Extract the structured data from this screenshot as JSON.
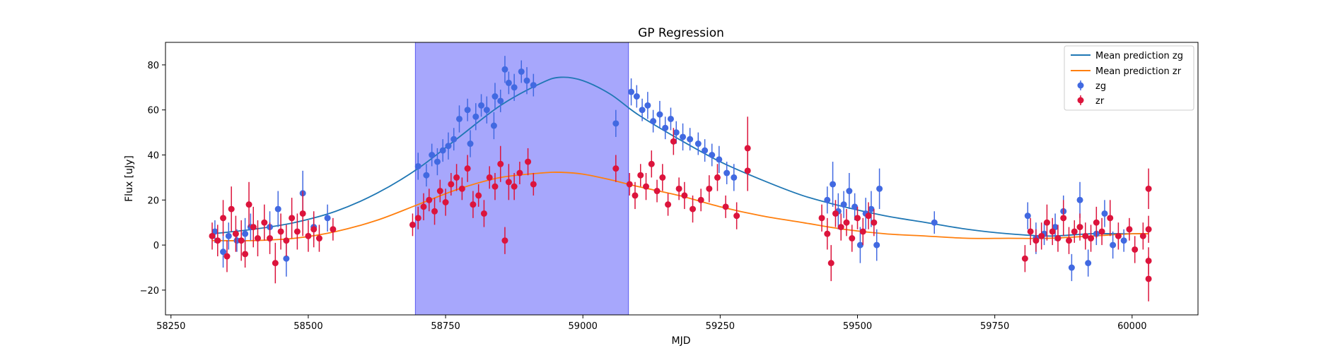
{
  "chart_data": {
    "type": "scatter",
    "title": "GP Regression",
    "xlabel": "MJD",
    "ylabel": "Flux [uJy]",
    "xlim": [
      58240,
      60120
    ],
    "ylim": [
      -31,
      90
    ],
    "xticks": [
      58250,
      58500,
      58750,
      59000,
      59250,
      59500,
      59750,
      60000
    ],
    "yticks": [
      -20,
      0,
      20,
      40,
      60,
      80
    ],
    "grid": false,
    "legend_position": "top-right",
    "legend": [
      "Mean prediction zg",
      "Mean prediction zr",
      "zg",
      "zr"
    ],
    "colors": {
      "zg_line": "#1f77b4",
      "zr_line": "#ff7f0e",
      "zg_points": "#4169e1",
      "zr_points": "#dc143c",
      "span": "#7d7dfa"
    },
    "highlight_span": {
      "x0": 58695,
      "x1": 59083
    },
    "series": [
      {
        "name": "Mean prediction zg",
        "kind": "line",
        "x": [
          58325,
          58400,
          58475,
          58550,
          58625,
          58700,
          58775,
          58850,
          58925,
          58960,
          59000,
          59050,
          59100,
          59175,
          59250,
          59325,
          59400,
          59475,
          59550,
          59625,
          59700,
          59775,
          59850,
          59925,
          60000,
          60030
        ],
        "y": [
          5,
          7,
          10,
          15,
          23,
          34,
          48,
          62,
          72,
          74.5,
          73,
          67,
          58,
          47,
          37,
          29,
          22,
          17,
          13,
          10,
          7,
          5,
          4,
          5,
          5,
          5
        ]
      },
      {
        "name": "Mean prediction zr",
        "kind": "line",
        "x": [
          58325,
          58400,
          58475,
          58550,
          58625,
          58700,
          58775,
          58850,
          58925,
          58960,
          59000,
          59050,
          59100,
          59175,
          59250,
          59325,
          59400,
          59475,
          59550,
          59625,
          59700,
          59775,
          59850,
          59925,
          60000,
          60030
        ],
        "y": [
          2,
          2,
          3,
          6,
          11,
          18,
          25,
          30,
          32,
          32.3,
          31.5,
          29,
          26,
          22,
          17,
          13,
          10,
          7,
          5,
          4,
          3,
          3,
          3,
          4,
          5,
          5
        ]
      },
      {
        "name": "zg",
        "kind": "errorbar",
        "points": [
          [
            58330,
            6,
            5
          ],
          [
            58345,
            -3,
            7
          ],
          [
            58355,
            4,
            6
          ],
          [
            58370,
            2,
            5
          ],
          [
            58385,
            5,
            7
          ],
          [
            58395,
            8,
            6
          ],
          [
            58430,
            8,
            7
          ],
          [
            58445,
            16,
            8
          ],
          [
            58460,
            -6,
            8
          ],
          [
            58490,
            23,
            10
          ],
          [
            58510,
            8,
            6
          ],
          [
            58535,
            12,
            6
          ],
          [
            58700,
            35,
            6
          ],
          [
            58715,
            31,
            5
          ],
          [
            58725,
            40,
            5
          ],
          [
            58735,
            37,
            6
          ],
          [
            58745,
            42,
            5
          ],
          [
            58755,
            44,
            6
          ],
          [
            58765,
            47,
            5
          ],
          [
            58775,
            56,
            6
          ],
          [
            58790,
            60,
            5
          ],
          [
            58805,
            57,
            6
          ],
          [
            58815,
            62,
            5
          ],
          [
            58825,
            60,
            6
          ],
          [
            58840,
            66,
            6
          ],
          [
            58850,
            64,
            5
          ],
          [
            58858,
            78,
            6
          ],
          [
            58865,
            72,
            5
          ],
          [
            58875,
            70,
            6
          ],
          [
            58888,
            77,
            5
          ],
          [
            58898,
            73,
            6
          ],
          [
            58910,
            71,
            5
          ],
          [
            58838,
            53,
            6
          ],
          [
            58795,
            45,
            6
          ],
          [
            59060,
            54,
            6
          ],
          [
            59088,
            68,
            6
          ],
          [
            59098,
            66,
            5
          ],
          [
            59108,
            60,
            5
          ],
          [
            59118,
            62,
            6
          ],
          [
            59128,
            55,
            5
          ],
          [
            59140,
            58,
            6
          ],
          [
            59150,
            52,
            5
          ],
          [
            59160,
            56,
            5
          ],
          [
            59170,
            50,
            5
          ],
          [
            59182,
            48,
            6
          ],
          [
            59195,
            47,
            5
          ],
          [
            59210,
            45,
            5
          ],
          [
            59222,
            42,
            5
          ],
          [
            59235,
            40,
            5
          ],
          [
            59248,
            38,
            6
          ],
          [
            59262,
            32,
            5
          ],
          [
            59275,
            30,
            6
          ],
          [
            59445,
            20,
            6
          ],
          [
            59455,
            27,
            10
          ],
          [
            59465,
            15,
            8
          ],
          [
            59475,
            18,
            6
          ],
          [
            59485,
            24,
            8
          ],
          [
            59495,
            17,
            6
          ],
          [
            59505,
            0,
            8
          ],
          [
            59515,
            14,
            7
          ],
          [
            59525,
            16,
            8
          ],
          [
            59540,
            25,
            9
          ],
          [
            59535,
            0,
            7
          ],
          [
            59640,
            10,
            5
          ],
          [
            59810,
            13,
            6
          ],
          [
            59825,
            3,
            7
          ],
          [
            59840,
            5,
            5
          ],
          [
            59860,
            8,
            6
          ],
          [
            59875,
            15,
            7
          ],
          [
            59890,
            -10,
            6
          ],
          [
            59905,
            20,
            8
          ],
          [
            59920,
            -8,
            6
          ],
          [
            59935,
            5,
            5
          ],
          [
            59950,
            14,
            6
          ],
          [
            59965,
            0,
            6
          ],
          [
            59985,
            2,
            5
          ]
        ]
      },
      {
        "name": "zr",
        "kind": "errorbar",
        "points": [
          [
            58325,
            4,
            6
          ],
          [
            58335,
            2,
            7
          ],
          [
            58345,
            12,
            8
          ],
          [
            58352,
            -5,
            7
          ],
          [
            58360,
            16,
            10
          ],
          [
            58368,
            5,
            8
          ],
          [
            58378,
            2,
            9
          ],
          [
            58385,
            -4,
            6
          ],
          [
            58392,
            18,
            10
          ],
          [
            58400,
            8,
            9
          ],
          [
            58408,
            3,
            8
          ],
          [
            58420,
            10,
            8
          ],
          [
            58430,
            3,
            7
          ],
          [
            58440,
            -8,
            9
          ],
          [
            58450,
            6,
            8
          ],
          [
            58460,
            2,
            7
          ],
          [
            58470,
            12,
            9
          ],
          [
            58480,
            6,
            8
          ],
          [
            58490,
            14,
            10
          ],
          [
            58500,
            4,
            7
          ],
          [
            58510,
            7,
            8
          ],
          [
            58520,
            3,
            6
          ],
          [
            58545,
            7,
            5
          ],
          [
            58690,
            9,
            5
          ],
          [
            58700,
            12,
            5
          ],
          [
            58710,
            17,
            6
          ],
          [
            58720,
            20,
            5
          ],
          [
            58730,
            15,
            6
          ],
          [
            58740,
            24,
            5
          ],
          [
            58750,
            19,
            6
          ],
          [
            58760,
            27,
            5
          ],
          [
            58770,
            30,
            6
          ],
          [
            58780,
            25,
            5
          ],
          [
            58790,
            34,
            6
          ],
          [
            58800,
            18,
            6
          ],
          [
            58810,
            22,
            5
          ],
          [
            58820,
            14,
            6
          ],
          [
            58830,
            30,
            5
          ],
          [
            58840,
            26,
            6
          ],
          [
            58850,
            36,
            8
          ],
          [
            58858,
            2,
            6
          ],
          [
            58865,
            28,
            8
          ],
          [
            58875,
            26,
            6
          ],
          [
            58885,
            32,
            5
          ],
          [
            58900,
            37,
            6
          ],
          [
            58910,
            27,
            5
          ],
          [
            59060,
            34,
            6
          ],
          [
            59085,
            27,
            5
          ],
          [
            59095,
            22,
            6
          ],
          [
            59105,
            31,
            5
          ],
          [
            59115,
            26,
            6
          ],
          [
            59125,
            36,
            6
          ],
          [
            59135,
            24,
            5
          ],
          [
            59145,
            30,
            6
          ],
          [
            59155,
            18,
            5
          ],
          [
            59165,
            46,
            6
          ],
          [
            59175,
            25,
            5
          ],
          [
            59185,
            22,
            6
          ],
          [
            59200,
            16,
            6
          ],
          [
            59215,
            20,
            5
          ],
          [
            59230,
            25,
            6
          ],
          [
            59245,
            30,
            6
          ],
          [
            59260,
            17,
            5
          ],
          [
            59280,
            13,
            6
          ],
          [
            59300,
            43,
            14
          ],
          [
            59300,
            33,
            9
          ],
          [
            59435,
            12,
            6
          ],
          [
            59445,
            5,
            7
          ],
          [
            59452,
            -8,
            8
          ],
          [
            59460,
            14,
            6
          ],
          [
            59470,
            8,
            6
          ],
          [
            59480,
            10,
            6
          ],
          [
            59490,
            3,
            6
          ],
          [
            59500,
            12,
            5
          ],
          [
            59510,
            6,
            6
          ],
          [
            59520,
            13,
            6
          ],
          [
            59530,
            10,
            6
          ],
          [
            59805,
            -6,
            6
          ],
          [
            59815,
            6,
            6
          ],
          [
            59825,
            2,
            5
          ],
          [
            59835,
            4,
            6
          ],
          [
            59845,
            10,
            8
          ],
          [
            59855,
            6,
            6
          ],
          [
            59865,
            3,
            6
          ],
          [
            59875,
            12,
            8
          ],
          [
            59885,
            2,
            6
          ],
          [
            59895,
            6,
            5
          ],
          [
            59905,
            8,
            6
          ],
          [
            59915,
            4,
            6
          ],
          [
            59925,
            3,
            6
          ],
          [
            59935,
            10,
            7
          ],
          [
            59945,
            6,
            6
          ],
          [
            59960,
            12,
            8
          ],
          [
            59975,
            4,
            6
          ],
          [
            59995,
            7,
            5
          ],
          [
            60005,
            -2,
            6
          ],
          [
            60020,
            4,
            6
          ],
          [
            60030,
            25,
            9
          ],
          [
            60030,
            -7,
            6
          ],
          [
            60030,
            -15,
            10
          ],
          [
            60030,
            7,
            6
          ]
        ]
      }
    ]
  }
}
